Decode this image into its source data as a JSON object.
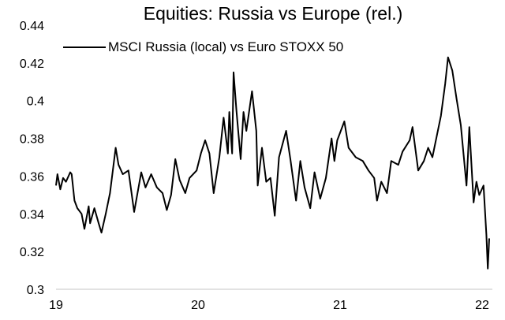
{
  "chart_data": {
    "type": "line",
    "title": "Equities: Russia vs Europe (rel.)",
    "xlabel": "",
    "ylabel": "",
    "xlim": [
      19,
      22.05
    ],
    "ylim": [
      0.3,
      0.44
    ],
    "x_ticks": [
      "19",
      "20",
      "21",
      "22"
    ],
    "y_ticks": [
      "0.3",
      "0.32",
      "0.34",
      "0.36",
      "0.38",
      "0.4",
      "0.42",
      "0.44"
    ],
    "grid": false,
    "legend": "top",
    "line_color": "#000000",
    "axis_color": "#d9d9d9",
    "series": [
      {
        "name": "MSCI Russia (local) vs Euro STOXX 50",
        "x": [
          19.0,
          19.01,
          19.03,
          19.05,
          19.07,
          19.1,
          19.11,
          19.13,
          19.15,
          19.18,
          19.2,
          19.23,
          19.24,
          19.27,
          19.3,
          19.32,
          19.35,
          19.38,
          19.42,
          19.44,
          19.47,
          19.51,
          19.55,
          19.6,
          19.63,
          19.67,
          19.71,
          19.75,
          19.78,
          19.81,
          19.84,
          19.87,
          19.91,
          19.94,
          19.99,
          20.02,
          20.05,
          20.08,
          20.11,
          20.15,
          20.18,
          20.21,
          20.22,
          20.24,
          20.25,
          20.27,
          20.3,
          20.32,
          20.34,
          20.38,
          20.41,
          20.42,
          20.45,
          20.48,
          20.51,
          20.54,
          20.57,
          20.62,
          20.65,
          20.69,
          20.72,
          20.75,
          20.79,
          20.82,
          20.86,
          20.9,
          20.94,
          20.96,
          20.98,
          21.03,
          21.06,
          21.11,
          21.16,
          21.2,
          21.24,
          21.26,
          21.29,
          21.33,
          21.36,
          21.41,
          21.44,
          21.49,
          21.51,
          21.55,
          21.59,
          21.62,
          21.65,
          21.68,
          21.71,
          21.74,
          21.76,
          21.79,
          21.82,
          21.85,
          21.89,
          21.91,
          21.94,
          21.96,
          21.98,
          22.01,
          22.03,
          22.04,
          22.05
        ],
        "y": [
          0.355,
          0.361,
          0.353,
          0.359,
          0.357,
          0.362,
          0.361,
          0.347,
          0.343,
          0.34,
          0.332,
          0.344,
          0.335,
          0.343,
          0.335,
          0.33,
          0.34,
          0.351,
          0.375,
          0.366,
          0.361,
          0.363,
          0.341,
          0.362,
          0.354,
          0.361,
          0.354,
          0.351,
          0.342,
          0.35,
          0.369,
          0.358,
          0.351,
          0.359,
          0.363,
          0.372,
          0.379,
          0.372,
          0.351,
          0.37,
          0.391,
          0.372,
          0.394,
          0.372,
          0.415,
          0.395,
          0.369,
          0.394,
          0.384,
          0.405,
          0.384,
          0.355,
          0.375,
          0.357,
          0.359,
          0.339,
          0.37,
          0.384,
          0.369,
          0.347,
          0.368,
          0.354,
          0.343,
          0.362,
          0.348,
          0.359,
          0.38,
          0.368,
          0.379,
          0.389,
          0.375,
          0.37,
          0.368,
          0.363,
          0.359,
          0.347,
          0.357,
          0.351,
          0.368,
          0.366,
          0.373,
          0.379,
          0.386,
          0.363,
          0.368,
          0.375,
          0.37,
          0.381,
          0.392,
          0.409,
          0.423,
          0.416,
          0.401,
          0.387,
          0.355,
          0.386,
          0.346,
          0.357,
          0.35,
          0.355,
          0.329,
          0.311,
          0.327
        ]
      }
    ]
  }
}
